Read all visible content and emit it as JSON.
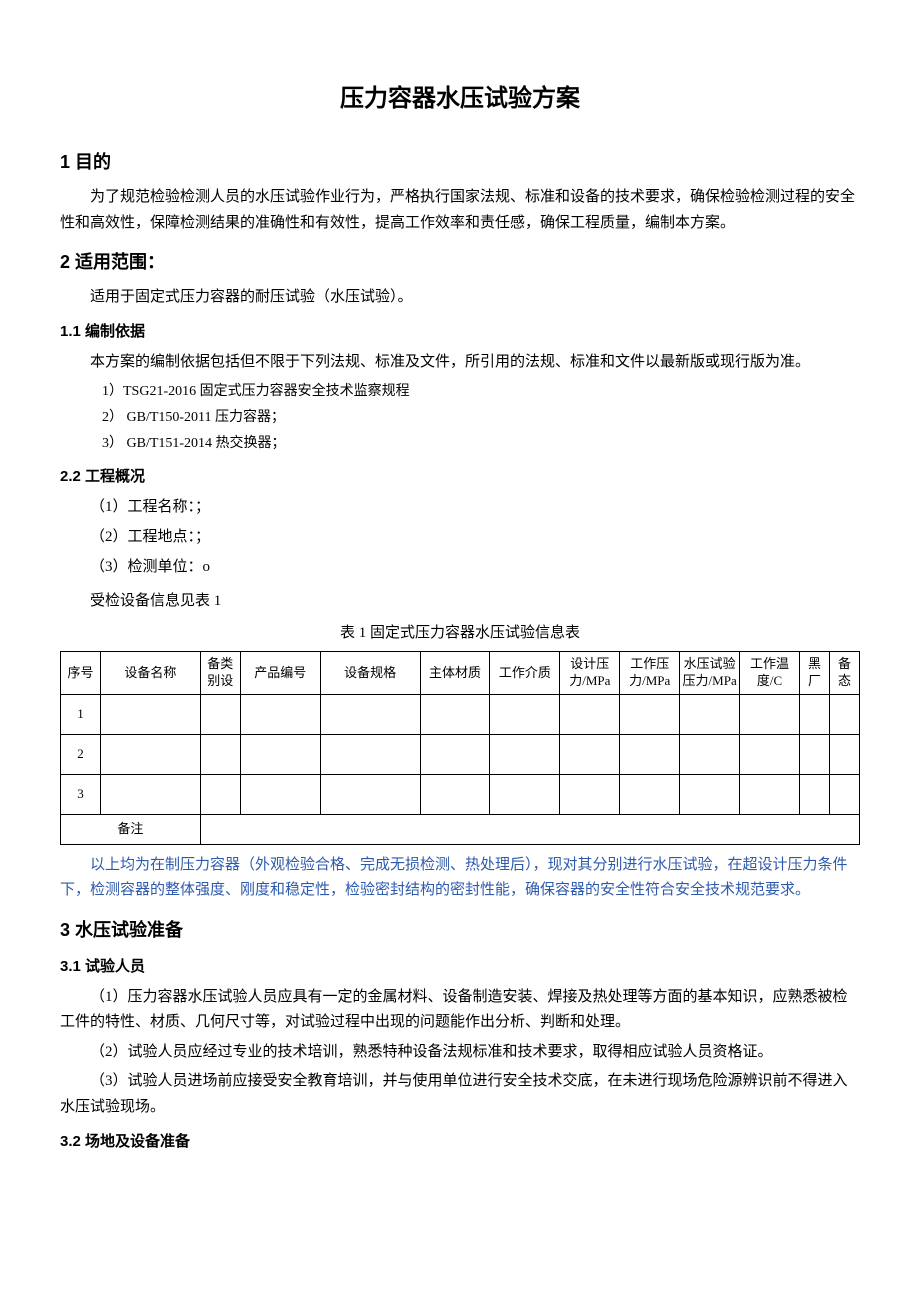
{
  "title": "压力容器水压试验方案",
  "sections": {
    "s1": {
      "heading": "1 目的",
      "para": "为了规范检验检测人员的水压试验作业行为，严格执行国家法规、标准和设备的技术要求，确保检验检测过程的安全性和高效性，保障检测结果的准确性和有效性，提高工作效率和责任感，确保工程质量，编制本方案。"
    },
    "s2": {
      "heading": "2 适用范围：",
      "para": "适用于固定式压力容器的耐压试验（水压试验）。",
      "sub1": {
        "heading": "1.1  编制依据",
        "para": "本方案的编制依据包括但不限于下列法规、标准及文件，所引用的法规、标准和文件以最新版或现行版为准。",
        "items": {
          "i1": "1）TSG21-2016 固定式压力容器安全技术监察规程",
          "i2": "2）  GB/T150-2011 压力容器；",
          "i3": "3）  GB/T151-2014 热交换器；"
        }
      },
      "sub2": {
        "heading": "2.2 工程概况",
        "fields": {
          "f1": "（1）工程名称：；",
          "f2": "（2）工程地点：；",
          "f3": "（3）检测单位：o"
        },
        "table_ref": "受检设备信息见表 1",
        "table_caption": "表 1 固定式压力容器水压试验信息表",
        "blue_note": "以上均为在制压力容器（外观检验合格、完成无损检测、热处理后），现对其分别进行水压试验，在超设计压力条件下，检测容器的整体强度、刚度和稳定性，检验密封结构的密封性能，确保容器的安全性符合安全技术规范要求。"
      }
    },
    "s3": {
      "heading": "3 水压试验准备",
      "sub1": {
        "heading": "3.1 试验人员",
        "paras": {
          "p1": "（1）压力容器水压试验人员应具有一定的金属材料、设备制造安装、焊接及热处理等方面的基本知识，应熟悉被检工件的特性、材质、几何尺寸等，对试验过程中出现的问题能作出分析、判断和处理。",
          "p2": "（2）试验人员应经过专业的技术培训，熟悉特种设备法规标准和技术要求，取得相应试验人员资格证。",
          "p3": "（3）试验人员进场前应接受安全教育培训，并与使用单位进行安全技术交底，在未进行现场危险源辨识前不得进入水压试验现场。"
        }
      },
      "sub2": {
        "heading": "3.2 场地及设备准备"
      }
    }
  },
  "table": {
    "headers": {
      "h1": "序号",
      "h2": "设备名称",
      "h3": "备类别设",
      "h4": "产品编号",
      "h5": "设备规格",
      "h6": "主体材质",
      "h7": "工作介质",
      "h8": "设计压力/MPa",
      "h9": "工作压力/MPa",
      "h10": "水压试验压力/MPa",
      "h11": "工作温度/C",
      "h12": "黑厂",
      "h13": "备态"
    },
    "rows": {
      "r1": "1",
      "r2": "2",
      "r3": "3"
    },
    "footer_label": "备注"
  },
  "colors": {
    "text": "#000000",
    "blue_text": "#2e5aac",
    "background": "#ffffff",
    "border": "#000000"
  }
}
